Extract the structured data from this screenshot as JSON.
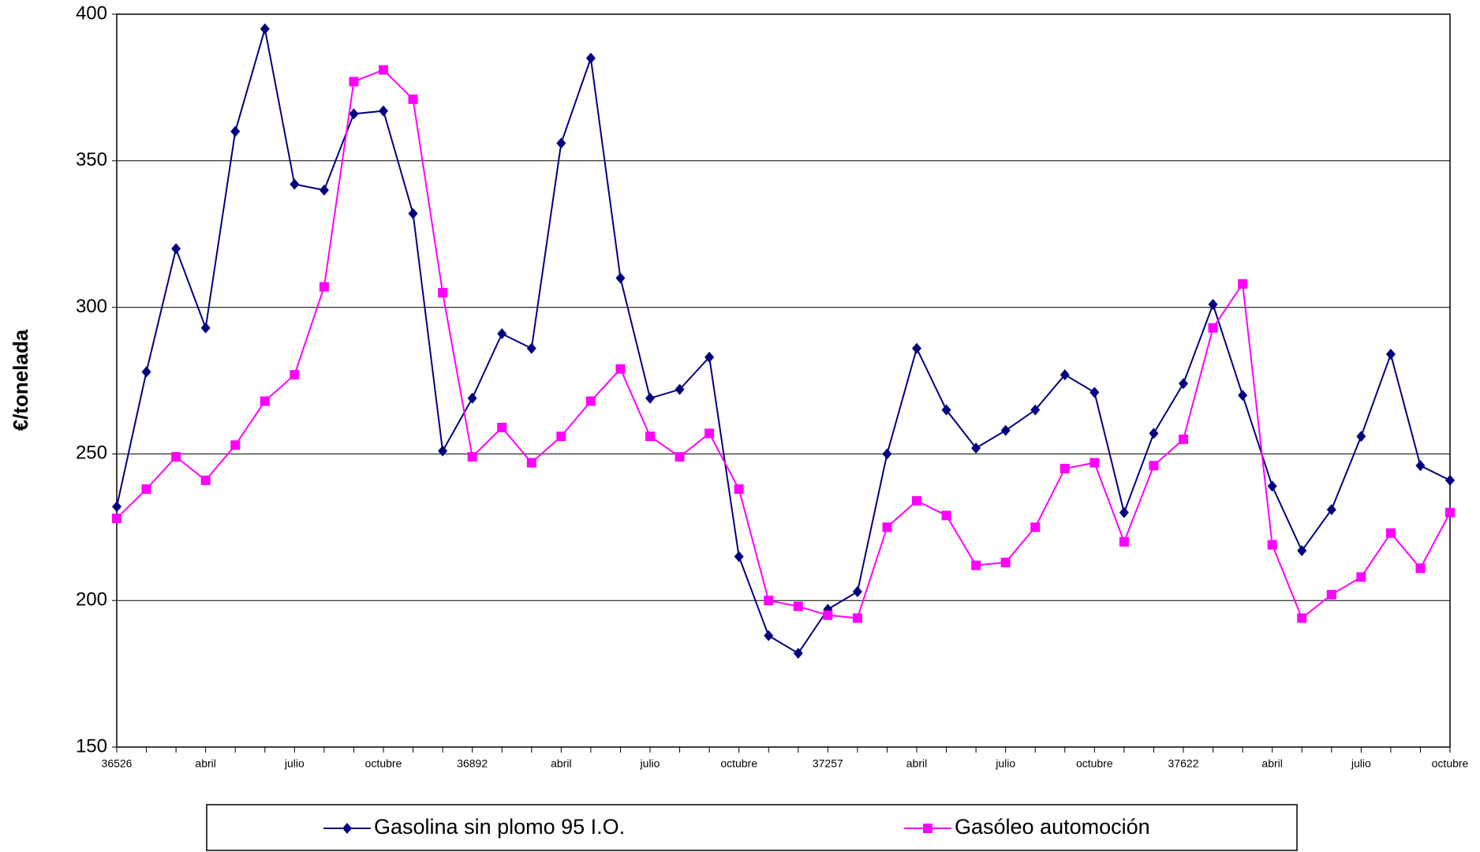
{
  "chart_data": {
    "type": "line",
    "y_label": "€/tonelada",
    "categories": [
      "36526",
      null,
      null,
      "abril",
      null,
      null,
      "julio",
      null,
      null,
      "octubre",
      null,
      null,
      "36892",
      null,
      null,
      "abril",
      null,
      null,
      "julio",
      null,
      null,
      "octubre",
      null,
      null,
      "37257",
      null,
      null,
      "abril",
      null,
      null,
      "julio",
      null,
      null,
      "octubre",
      null,
      null,
      "37622",
      null,
      null,
      "abril",
      null,
      null,
      "julio",
      null,
      null,
      "octubre"
    ],
    "series": [
      {
        "name": "Gasolina sin plomo 95 I.O.",
        "color": "#000080",
        "marker": "diamond",
        "values": [
          232,
          278,
          320,
          293,
          360,
          395,
          342,
          340,
          366,
          367,
          332,
          251,
          269,
          291,
          286,
          356,
          385,
          310,
          269,
          272,
          283,
          215,
          188,
          182,
          197,
          203,
          250,
          286,
          265,
          252,
          258,
          265,
          277,
          271,
          230,
          257,
          274,
          301,
          270,
          239,
          217,
          231,
          256,
          284,
          246,
          241
        ]
      },
      {
        "name": "Gasóleo automoción",
        "color": "#ff00ff",
        "marker": "square",
        "values": [
          228,
          238,
          249,
          241,
          253,
          268,
          277,
          307,
          377,
          381,
          371,
          305,
          249,
          259,
          247,
          256,
          268,
          279,
          256,
          249,
          257,
          238,
          200,
          198,
          195,
          194,
          225,
          234,
          229,
          212,
          213,
          225,
          245,
          247,
          220,
          246,
          255,
          293,
          308,
          219,
          194,
          202,
          208,
          223,
          211,
          230
        ]
      }
    ],
    "ylim": [
      150,
      400
    ],
    "yticks": [
      150,
      200,
      250,
      300,
      350,
      400
    ],
    "grid": true,
    "legend": "bottom"
  }
}
